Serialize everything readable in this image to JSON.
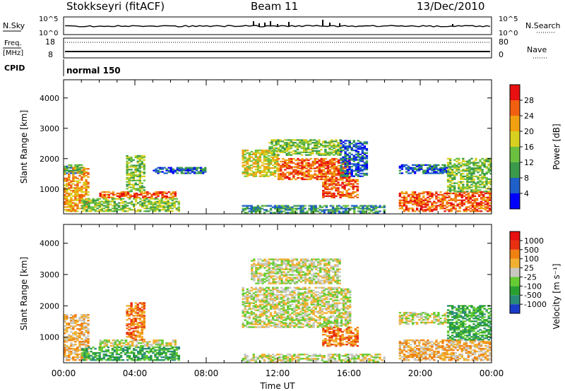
{
  "header": {
    "station": "Stokkseyri (fitACF)",
    "beam": "Beam 11",
    "date": "13/Dec/2010"
  },
  "status_panel": {
    "nsky_label": "N.Sky",
    "nsky_ticks": [
      "10^5",
      "10^0"
    ],
    "nsearch_label": "N.Search",
    "nsearch_ticks": [
      "10^5",
      "10^0"
    ],
    "freq_label": "Freq.",
    "freq_unit": "[MHz]",
    "freq_ticks": [
      "18",
      "8"
    ],
    "nave_label": "Nave",
    "nave_ticks": [
      "80",
      "0"
    ],
    "cpid_label": "CPID",
    "cpid_value": "normal 150"
  },
  "chart_data": [
    {
      "type": "heatmap",
      "quantity": "Power",
      "xlabel": "Time UT",
      "ylabel": "Slant Range [km]",
      "xlim_hours": [
        0,
        24
      ],
      "ylim": [
        180,
        4600
      ],
      "x_ticks": [
        "00:00",
        "04:00",
        "08:00",
        "12:00",
        "16:00",
        "20:00",
        "00:00"
      ],
      "y_ticks": [
        1000,
        2000,
        3000,
        4000
      ],
      "colorbar_label": "Power [dB]",
      "colorbar_ticks": [
        "28",
        "24",
        "20",
        "16",
        "12",
        "8",
        "4"
      ],
      "colorbar_colors": [
        "#0000ff",
        "#1f5fc8",
        "#3a9a4a",
        "#6cc040",
        "#d8d020",
        "#f0a010",
        "#f06010",
        "#e81010"
      ],
      "echo_regions": [
        {
          "t0": 0.0,
          "t1": 1.4,
          "r0": 250,
          "r1": 1700,
          "level": 5
        },
        {
          "t0": 0.0,
          "t1": 1.0,
          "r0": 1500,
          "r1": 1800,
          "level": 2
        },
        {
          "t0": 2.0,
          "t1": 6.3,
          "r0": 700,
          "r1": 900,
          "level": 6
        },
        {
          "t0": 1.0,
          "t1": 6.5,
          "r0": 250,
          "r1": 700,
          "level": 3
        },
        {
          "t0": 3.5,
          "t1": 4.5,
          "r0": 900,
          "r1": 2100,
          "level": 3
        },
        {
          "t0": 5.0,
          "t1": 8.0,
          "r0": 1500,
          "r1": 1700,
          "level": 1
        },
        {
          "t0": 10.0,
          "t1": 18.0,
          "r0": 200,
          "r1": 450,
          "level": 2
        },
        {
          "t0": 10.0,
          "t1": 12.0,
          "r0": 1400,
          "r1": 2300,
          "level": 4
        },
        {
          "t0": 12.0,
          "t1": 16.0,
          "r0": 1300,
          "r1": 2000,
          "level": 6
        },
        {
          "t0": 11.5,
          "t1": 15.5,
          "r0": 2100,
          "r1": 2600,
          "level": 3
        },
        {
          "t0": 14.5,
          "t1": 16.5,
          "r0": 700,
          "r1": 1300,
          "level": 6
        },
        {
          "t0": 15.5,
          "t1": 17.0,
          "r0": 1400,
          "r1": 2600,
          "level": 1
        },
        {
          "t0": 18.8,
          "t1": 24.0,
          "r0": 250,
          "r1": 900,
          "level": 6
        },
        {
          "t0": 18.8,
          "t1": 21.5,
          "r0": 1500,
          "r1": 1800,
          "level": 1
        },
        {
          "t0": 21.5,
          "t1": 24.0,
          "r0": 900,
          "r1": 2000,
          "level": 3
        }
      ]
    },
    {
      "type": "heatmap",
      "quantity": "Velocity",
      "xlabel": "Time UT",
      "ylabel": "Slant Range [km]",
      "xlim_hours": [
        0,
        24
      ],
      "ylim": [
        180,
        4600
      ],
      "x_ticks": [
        "00:00",
        "04:00",
        "08:00",
        "12:00",
        "16:00",
        "20:00",
        "00:00"
      ],
      "y_ticks": [
        1000,
        2000,
        3000,
        4000
      ],
      "colorbar_label": "Velocity [m s⁻¹]",
      "colorbar_ticks": [
        "1000",
        "500",
        "100",
        "25",
        "-25",
        "-100",
        "-500",
        "-1000"
      ],
      "colorbar_colors": [
        "#1a3cc8",
        "#2a8c78",
        "#2aa030",
        "#66cc33",
        "#c8c8c0",
        "#f0b030",
        "#f08010",
        "#e83010",
        "#e81010"
      ],
      "echo_regions": [
        {
          "t0": 0.0,
          "t1": 1.4,
          "r0": 250,
          "r1": 1700,
          "level": 5
        },
        {
          "t0": 1.0,
          "t1": 6.5,
          "r0": 250,
          "r1": 700,
          "level": 2
        },
        {
          "t0": 2.0,
          "t1": 6.3,
          "r0": 700,
          "r1": 900,
          "level": 4
        },
        {
          "t0": 3.5,
          "t1": 4.5,
          "r0": 900,
          "r1": 2100,
          "level": 6
        },
        {
          "t0": 10.0,
          "t1": 18.0,
          "r0": 200,
          "r1": 450,
          "level": 4
        },
        {
          "t0": 10.0,
          "t1": 16.0,
          "r0": 1300,
          "r1": 2600,
          "level": 4
        },
        {
          "t0": 10.5,
          "t1": 15.5,
          "r0": 2700,
          "r1": 3500,
          "level": 4
        },
        {
          "t0": 14.5,
          "t1": 16.5,
          "r0": 700,
          "r1": 1300,
          "level": 6
        },
        {
          "t0": 18.8,
          "t1": 24.0,
          "r0": 250,
          "r1": 900,
          "level": 5
        },
        {
          "t0": 18.8,
          "t1": 21.5,
          "r0": 1400,
          "r1": 1800,
          "level": 4
        },
        {
          "t0": 21.5,
          "t1": 24.0,
          "r0": 900,
          "r1": 2000,
          "level": 2
        }
      ]
    }
  ]
}
